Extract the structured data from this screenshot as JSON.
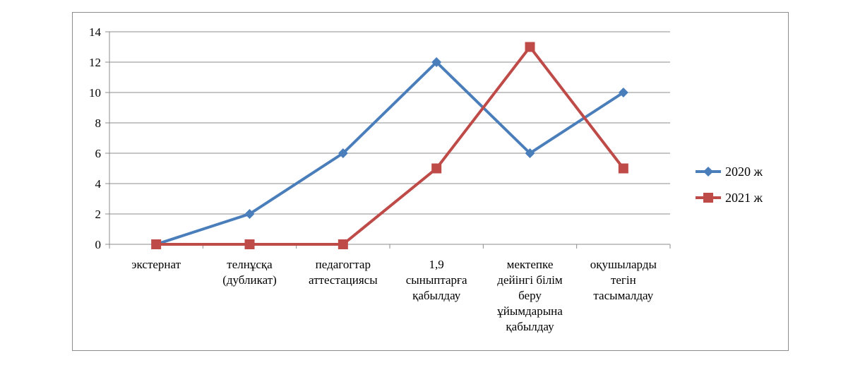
{
  "chart_data": {
    "type": "line",
    "categories": [
      [
        "экстернат"
      ],
      [
        "телнұсқа",
        "(дубликат)"
      ],
      [
        "педагогтар",
        "аттестациясы"
      ],
      [
        "1,9",
        "сыныптарға",
        "қабылдау"
      ],
      [
        "мектепке",
        "дейінгі  білім",
        "беру",
        "ұйымдарына",
        "қабылдау"
      ],
      [
        "оқушыларды",
        "тегін",
        "тасымалдау"
      ]
    ],
    "series": [
      {
        "name": "2020  ж",
        "values": [
          0,
          2,
          6,
          12,
          6,
          10
        ],
        "color": "#4a7ebb",
        "marker": "diamond"
      },
      {
        "name": "2021  ж",
        "values": [
          0,
          0,
          0,
          5,
          13,
          5
        ],
        "color": "#be4b48",
        "marker": "square"
      }
    ],
    "ylim": [
      0,
      14
    ],
    "yticks": [
      "0",
      "2",
      "4",
      "6",
      "8",
      "10",
      "12",
      "14"
    ],
    "grid": true,
    "legend": "right"
  }
}
